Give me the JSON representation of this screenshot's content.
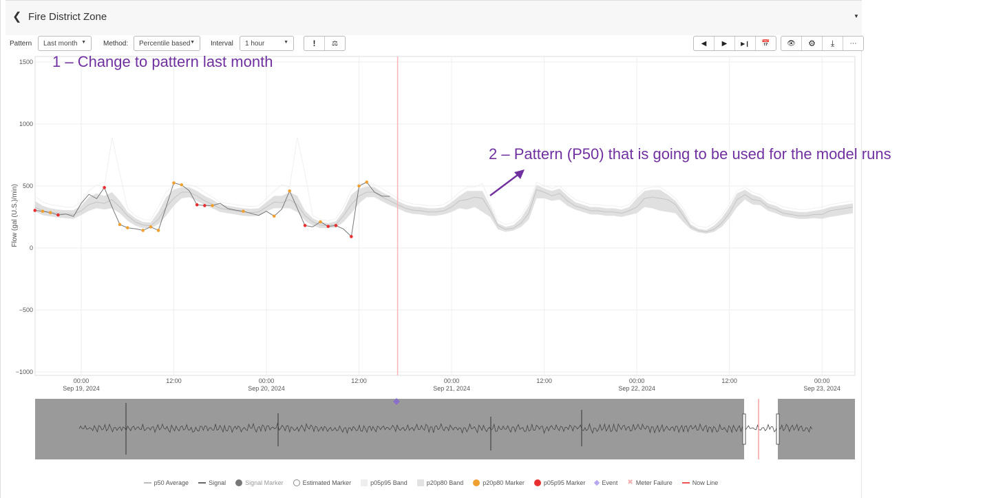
{
  "header": {
    "title": "Fire District Zone",
    "back_icon": "chevron-left-icon"
  },
  "toolbar": {
    "pattern_label": "Pattern",
    "pattern_value": "Last month",
    "method_label": "Method:",
    "method_value": "Percentile based",
    "interval_label": "Interval",
    "interval_value": "1 hour",
    "buttons_left": [
      "exclamation-icon",
      "scale-icon"
    ],
    "buttons_nav": [
      "previous-icon",
      "play-icon",
      "skip-end-icon",
      "calendar-icon"
    ],
    "buttons_right": [
      "eye-icon",
      "gear-icon",
      "download-icon",
      "more-icon"
    ]
  },
  "annotations": {
    "step1": "1 – Change to pattern last month",
    "step2": "2 – Pattern (P50) that is going to be used for the model runs",
    "color": "#7030a0"
  },
  "legend": [
    {
      "label": "p50 Average",
      "type": "line",
      "color": "#bbbbbb"
    },
    {
      "label": "Signal",
      "type": "line",
      "color": "#666666"
    },
    {
      "label": "Signal Marker",
      "type": "dot",
      "color": "#777777"
    },
    {
      "label": "Estimated Marker",
      "type": "ring",
      "color": "#888888"
    },
    {
      "label": "p05p95 Band",
      "type": "square",
      "color": "#eeeeee"
    },
    {
      "label": "p20p80 Band",
      "type": "square",
      "color": "#e2e2e2"
    },
    {
      "label": "p20p80 Marker",
      "type": "dot",
      "color": "#f0a030"
    },
    {
      "label": "p05p95 Marker",
      "type": "dot",
      "color": "#e83030"
    },
    {
      "label": "Event",
      "type": "diamond",
      "color": "#b9a6f0"
    },
    {
      "label": "Meter Failure",
      "type": "cross",
      "color": "#f5b0b0"
    },
    {
      "label": "Now Line",
      "type": "line",
      "color": "#f05050"
    }
  ],
  "chart_data": {
    "type": "line",
    "ylabel": "Flow (gal (U.S.)/min)",
    "ylim": [
      -1000,
      1500
    ],
    "yticks": [
      "1500",
      "1000",
      "500",
      "0",
      "−500",
      "−1000"
    ],
    "ytick_values": [
      1500,
      1000,
      500,
      0,
      -500,
      -1000
    ],
    "xlim": [
      "2024-09-18T18:00",
      "2024-09-23T04:15"
    ],
    "xticks": [
      {
        "t": "2024-09-19T00:00",
        "time": "00:00",
        "date": "Sep 19, 2024"
      },
      {
        "t": "2024-09-19T12:00",
        "time": "12:00",
        "date": ""
      },
      {
        "t": "2024-09-20T00:00",
        "time": "00:00",
        "date": "Sep 20, 2024"
      },
      {
        "t": "2024-09-20T12:00",
        "time": "12:00",
        "date": ""
      },
      {
        "t": "2024-09-21T00:00",
        "time": "00:00",
        "date": "Sep 21, 2024"
      },
      {
        "t": "2024-09-21T12:00",
        "time": "12:00",
        "date": ""
      },
      {
        "t": "2024-09-22T00:00",
        "time": "00:00",
        "date": "Sep 22, 2024"
      },
      {
        "t": "2024-09-22T12:00",
        "time": "12:00",
        "date": ""
      },
      {
        "t": "2024-09-23T00:00",
        "time": "00:00",
        "date": "Sep 23, 2024"
      }
    ],
    "grid": true,
    "now_line": "2024-09-20T17:00",
    "event": "2024-09-20T17:00",
    "band_start": "2024-09-18T18:00",
    "step": "1 hour",
    "p50": [
      330,
      300,
      290,
      280,
      275,
      270,
      300,
      350,
      370,
      360,
      390,
      330,
      260,
      210,
      185,
      180,
      230,
      330,
      400,
      450,
      450,
      420,
      380,
      350,
      320,
      310,
      300,
      290,
      285,
      290,
      330,
      370,
      365,
      390,
      350,
      260,
      210,
      185,
      180,
      190,
      260,
      350,
      420,
      450,
      450,
      410,
      380,
      350,
      320,
      305,
      300,
      290,
      290,
      300,
      330,
      380,
      390,
      410,
      400,
      300,
      180,
      150,
      160,
      200,
      280,
      470,
      450,
      420,
      440,
      380,
      340,
      320,
      300,
      300,
      290,
      290,
      280,
      300,
      330,
      400,
      410,
      400,
      390,
      350,
      260,
      170,
      140,
      130,
      150,
      200,
      280,
      390,
      430,
      390,
      380,
      330,
      310,
      280,
      270,
      260,
      260,
      270,
      270,
      300,
      310,
      320,
      330
    ],
    "p20": [
      295,
      265,
      255,
      245,
      240,
      235,
      265,
      300,
      320,
      310,
      320,
      280,
      220,
      180,
      160,
      160,
      190,
      260,
      340,
      400,
      410,
      380,
      345,
      320,
      290,
      280,
      270,
      260,
      255,
      260,
      295,
      320,
      320,
      320,
      290,
      220,
      180,
      160,
      160,
      165,
      210,
      280,
      360,
      410,
      410,
      375,
      345,
      320,
      290,
      275,
      270,
      260,
      260,
      270,
      290,
      320,
      310,
      330,
      290,
      250,
      150,
      130,
      140,
      170,
      230,
      400,
      400,
      380,
      390,
      340,
      310,
      290,
      270,
      270,
      260,
      260,
      250,
      265,
      280,
      330,
      320,
      300,
      290,
      280,
      210,
      150,
      125,
      115,
      130,
      170,
      240,
      330,
      390,
      350,
      345,
      300,
      280,
      255,
      245,
      235,
      235,
      240,
      235,
      250,
      260,
      270,
      280
    ],
    "p80": [
      380,
      340,
      320,
      310,
      305,
      305,
      340,
      410,
      440,
      420,
      450,
      380,
      290,
      240,
      210,
      205,
      290,
      410,
      470,
      490,
      490,
      460,
      420,
      390,
      350,
      340,
      330,
      320,
      315,
      320,
      370,
      420,
      420,
      450,
      420,
      300,
      240,
      210,
      200,
      215,
      300,
      430,
      480,
      495,
      490,
      450,
      420,
      380,
      350,
      335,
      330,
      320,
      320,
      330,
      370,
      420,
      460,
      460,
      460,
      340,
      200,
      170,
      185,
      240,
      340,
      510,
      480,
      460,
      480,
      420,
      370,
      350,
      330,
      330,
      320,
      320,
      310,
      330,
      400,
      460,
      470,
      470,
      430,
      380,
      300,
      190,
      155,
      145,
      180,
      240,
      330,
      440,
      470,
      430,
      410,
      360,
      340,
      310,
      300,
      290,
      290,
      300,
      310,
      330,
      340,
      350,
      360
    ],
    "p95": [
      420,
      370,
      350,
      340,
      330,
      330,
      370,
      460,
      510,
      490,
      890,
      600,
      320,
      260,
      230,
      225,
      330,
      450,
      510,
      510,
      510,
      490,
      450,
      410,
      370,
      360,
      350,
      340,
      335,
      340,
      400,
      460,
      510,
      490,
      890,
      600,
      260,
      230,
      220,
      235,
      330,
      470,
      520,
      520,
      510,
      480,
      440,
      400,
      370,
      355,
      350,
      340,
      340,
      350,
      390,
      450,
      490,
      490,
      520,
      360,
      220,
      190,
      205,
      260,
      360,
      530,
      500,
      480,
      500,
      440,
      390,
      370,
      350,
      350,
      340,
      340,
      330,
      350,
      420,
      480,
      490,
      490,
      450,
      400,
      320,
      210,
      175,
      165,
      200,
      260,
      350,
      460,
      490,
      450,
      430,
      380,
      360,
      330,
      320,
      310,
      310,
      320,
      330,
      350,
      360,
      370,
      380
    ],
    "signal_start": "2024-09-18T18:00",
    "signal": [
      303,
      296,
      285,
      266,
      274,
      255,
      360,
      433,
      398,
      487,
      330,
      189,
      163,
      155,
      142,
      170,
      142,
      330,
      525,
      509,
      462,
      348,
      342,
      342,
      360,
      318,
      305,
      296,
      279,
      263,
      296,
      257,
      314,
      460,
      320,
      181,
      170,
      211,
      174,
      181,
      152,
      92,
      500,
      531,
      450,
      418,
      416
    ],
    "signal_markers": [
      "p05p95",
      "p20p80",
      "p20p80",
      "p05p95",
      null,
      null,
      null,
      null,
      null,
      "p05p95",
      null,
      "p20p80",
      "p20p80",
      null,
      "p20p80",
      "p20p80",
      "p20p80",
      null,
      "p20p80",
      "p20p80",
      null,
      "p05p95",
      "p05p95",
      "p20p80",
      null,
      null,
      null,
      "p20p80",
      null,
      null,
      null,
      "p20p80",
      null,
      "p20p80",
      null,
      "p05p95",
      null,
      "p20p80",
      "p05p95",
      "p05p95",
      null,
      "p05p95",
      "p20p80",
      "p20p80",
      null,
      null,
      null
    ],
    "navigator": {
      "window": [
        "2024-09-18T18:00",
        "2024-09-23T04:15"
      ]
    }
  }
}
